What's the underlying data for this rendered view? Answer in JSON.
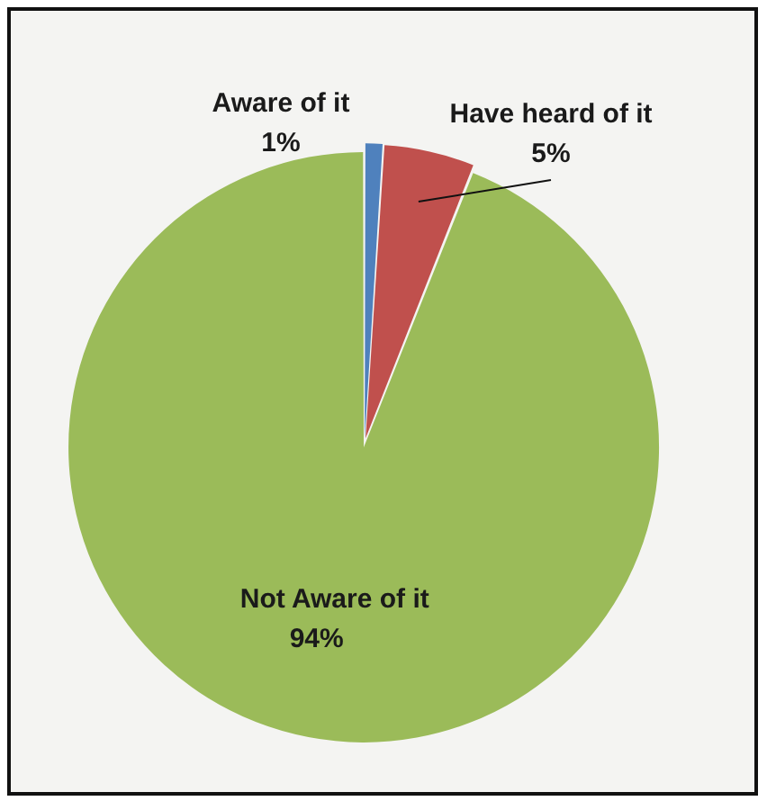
{
  "chart_data": {
    "type": "pie",
    "categories": [
      "Aware of it",
      "Have heard of it",
      "Not Aware of it"
    ],
    "values": [
      1,
      5,
      94
    ],
    "colors": [
      "#4f81bd",
      "#c0504d",
      "#9bbb59"
    ],
    "value_labels": [
      "1%",
      "5%",
      "94%"
    ]
  }
}
